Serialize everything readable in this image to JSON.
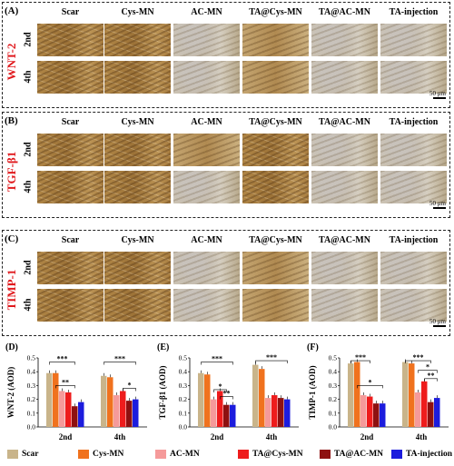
{
  "histology": {
    "columns": [
      "Scar",
      "Cys-MN",
      "AC-MN",
      "TA@Cys-MN",
      "TA@AC-MN",
      "TA-injection"
    ],
    "rows": [
      "2nd",
      "4th"
    ],
    "scale_bar": "50 μm",
    "panels": [
      {
        "letter": "(A)",
        "stain": "WNT-2"
      },
      {
        "letter": "(B)",
        "stain": "TGF-β1"
      },
      {
        "letter": "(C)",
        "stain": "TIMP-1"
      }
    ]
  },
  "chart_data": [
    {
      "type": "bar",
      "panel": "(D)",
      "ylabel": "WNT-2 (AOD)",
      "categories": [
        "2nd",
        "4th"
      ],
      "ylim": [
        0,
        0.5
      ],
      "yticks": [
        "0.0",
        "0.1",
        "0.2",
        "0.3",
        "0.4",
        "0.5"
      ],
      "series": [
        {
          "name": "Scar",
          "values": [
            0.39,
            0.37
          ]
        },
        {
          "name": "Cys-MN",
          "values": [
            0.39,
            0.36
          ]
        },
        {
          "name": "AC-MN",
          "values": [
            0.26,
            0.23
          ]
        },
        {
          "name": "TA@Cys-MN",
          "values": [
            0.25,
            0.26
          ]
        },
        {
          "name": "TA@AC-MN",
          "values": [
            0.15,
            0.19
          ]
        },
        {
          "name": "TA-injection",
          "values": [
            0.18,
            0.2
          ]
        }
      ],
      "significance": [
        "***",
        "**",
        "***",
        "*"
      ]
    },
    {
      "type": "bar",
      "panel": "(E)",
      "ylabel": "TGF-β1 (AOD)",
      "categories": [
        "2nd",
        "4th"
      ],
      "ylim": [
        0,
        0.5
      ],
      "yticks": [
        "0.0",
        "0.1",
        "0.2",
        "0.3",
        "0.4",
        "0.5"
      ],
      "series": [
        {
          "name": "Scar",
          "values": [
            0.39,
            0.45
          ]
        },
        {
          "name": "Cys-MN",
          "values": [
            0.38,
            0.42
          ]
        },
        {
          "name": "AC-MN",
          "values": [
            0.2,
            0.21
          ]
        },
        {
          "name": "TA@Cys-MN",
          "values": [
            0.26,
            0.23
          ]
        },
        {
          "name": "TA@AC-MN",
          "values": [
            0.16,
            0.21
          ]
        },
        {
          "name": "TA-injection",
          "values": [
            0.16,
            0.2
          ]
        }
      ],
      "significance": [
        "***",
        "*",
        "**",
        "***"
      ]
    },
    {
      "type": "bar",
      "panel": "(F)",
      "ylabel": "TIMP-1 (AOD)",
      "categories": [
        "2nd",
        "4th"
      ],
      "ylim": [
        0,
        0.5
      ],
      "yticks": [
        "0.0",
        "0.1",
        "0.2",
        "0.3",
        "0.4",
        "0.5"
      ],
      "series": [
        {
          "name": "Scar",
          "values": [
            0.46,
            0.47
          ]
        },
        {
          "name": "Cys-MN",
          "values": [
            0.47,
            0.46
          ]
        },
        {
          "name": "AC-MN",
          "values": [
            0.23,
            0.25
          ]
        },
        {
          "name": "TA@Cys-MN",
          "values": [
            0.22,
            0.33
          ]
        },
        {
          "name": "TA@AC-MN",
          "values": [
            0.17,
            0.18
          ]
        },
        {
          "name": "TA-injection",
          "values": [
            0.17,
            0.21
          ]
        }
      ],
      "significance": [
        "***",
        "*",
        "***",
        "*",
        "**"
      ]
    }
  ],
  "legend": [
    "Scar",
    "Cys-MN",
    "AC-MN",
    "TA@Cys-MN",
    "TA@AC-MN",
    "TA-injection"
  ],
  "colors": {
    "Scar": "#c9b48a",
    "Cys-MN": "#f0721e",
    "AC-MN": "#f59a9a",
    "TA@Cys-MN": "#ee1c1c",
    "TA@AC-MN": "#8e1010",
    "TA-injection": "#1c1cdd",
    "stain_label": "#e0191d"
  }
}
